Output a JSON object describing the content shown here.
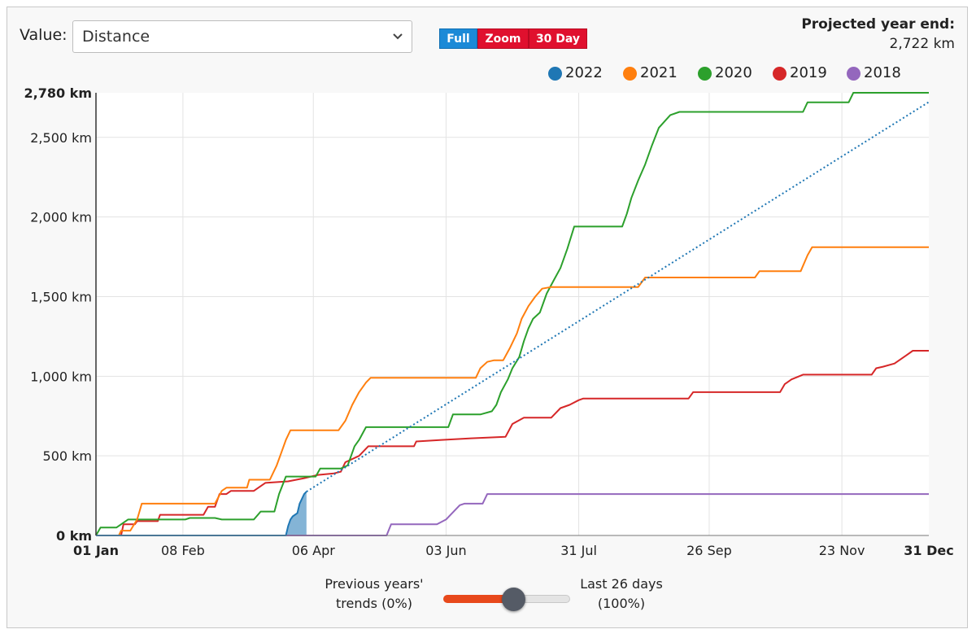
{
  "controls": {
    "value_label": "Value:",
    "selected_metric": "Distance",
    "segments": {
      "full": "Full",
      "zoom": "Zoom",
      "thirty_day": "30 Day"
    },
    "projection_title": "Projected year end:",
    "projection_value": "2,722 km"
  },
  "slider": {
    "left_line1": "Previous years'",
    "left_line2": "trends (0%)",
    "right_line1": "Last 26 days",
    "right_line2": "(100%)",
    "value_percent": 45
  },
  "colors": {
    "2022": "#1f77b4",
    "2021": "#ff7f0e",
    "2020": "#2ca02c",
    "2019": "#d62728",
    "2018": "#9467bd",
    "full_active": "#1c8ad7",
    "segment_red": "#e0102e",
    "slider_fill": "#e8491c"
  },
  "chart_data": {
    "type": "line",
    "title": "",
    "xlabel": "",
    "ylabel": "",
    "unit": "km",
    "ylim": [
      0,
      2780
    ],
    "xlim_day_of_year": [
      1,
      365
    ],
    "grid": true,
    "legend_position": "top-right",
    "y_ticks": [
      {
        "v": 0,
        "label": "0 km",
        "bold": true
      },
      {
        "v": 500,
        "label": "500 km",
        "bold": false
      },
      {
        "v": 1000,
        "label": "1,000 km",
        "bold": false
      },
      {
        "v": 1500,
        "label": "1,500 km",
        "bold": false
      },
      {
        "v": 2000,
        "label": "2,000 km",
        "bold": false
      },
      {
        "v": 2500,
        "label": "2,500 km",
        "bold": false
      },
      {
        "v": 2780,
        "label": "2,780 km",
        "bold": true
      }
    ],
    "x_ticks": [
      {
        "d": 1,
        "label": "01 Jan",
        "bold": true
      },
      {
        "d": 39,
        "label": "08 Feb",
        "bold": false
      },
      {
        "d": 96,
        "label": "06 Apr",
        "bold": false
      },
      {
        "d": 154,
        "label": "03 Jun",
        "bold": false
      },
      {
        "d": 212,
        "label": "31 Jul",
        "bold": false
      },
      {
        "d": 269,
        "label": "26 Sep",
        "bold": false
      },
      {
        "d": 327,
        "label": "23 Nov",
        "bold": false
      },
      {
        "d": 365,
        "label": "31 Dec",
        "bold": true
      }
    ],
    "series": [
      {
        "name": "2018",
        "color_key": "2018",
        "points": [
          [
            1,
            0
          ],
          [
            128,
            0
          ],
          [
            130,
            70
          ],
          [
            150,
            70
          ],
          [
            154,
            100
          ],
          [
            160,
            190
          ],
          [
            162,
            200
          ],
          [
            170,
            200
          ],
          [
            172,
            260
          ],
          [
            365,
            260
          ]
        ]
      },
      {
        "name": "2019",
        "color_key": "2019",
        "points": [
          [
            1,
            0
          ],
          [
            12,
            0
          ],
          [
            13,
            70
          ],
          [
            18,
            70
          ],
          [
            19,
            90
          ],
          [
            28,
            90
          ],
          [
            29,
            130
          ],
          [
            48,
            130
          ],
          [
            50,
            180
          ],
          [
            53,
            180
          ],
          [
            55,
            260
          ],
          [
            58,
            260
          ],
          [
            60,
            280
          ],
          [
            70,
            280
          ],
          [
            75,
            330
          ],
          [
            85,
            340
          ],
          [
            92,
            360
          ],
          [
            98,
            380
          ],
          [
            105,
            390
          ],
          [
            108,
            400
          ],
          [
            110,
            460
          ],
          [
            116,
            500
          ],
          [
            120,
            560
          ],
          [
            140,
            560
          ],
          [
            141,
            590
          ],
          [
            152,
            600
          ],
          [
            165,
            610
          ],
          [
            180,
            620
          ],
          [
            183,
            700
          ],
          [
            188,
            740
          ],
          [
            200,
            740
          ],
          [
            204,
            800
          ],
          [
            208,
            820
          ],
          [
            212,
            850
          ],
          [
            214,
            860
          ],
          [
            260,
            860
          ],
          [
            262,
            900
          ],
          [
            300,
            900
          ],
          [
            302,
            950
          ],
          [
            305,
            980
          ],
          [
            310,
            1010
          ],
          [
            340,
            1010
          ],
          [
            342,
            1050
          ],
          [
            345,
            1060
          ],
          [
            350,
            1080
          ],
          [
            355,
            1130
          ],
          [
            358,
            1160
          ],
          [
            365,
            1160
          ]
        ]
      },
      {
        "name": "2020",
        "color_key": "2020",
        "points": [
          [
            1,
            0
          ],
          [
            3,
            50
          ],
          [
            10,
            50
          ],
          [
            15,
            100
          ],
          [
            40,
            100
          ],
          [
            42,
            110
          ],
          [
            53,
            110
          ],
          [
            56,
            100
          ],
          [
            70,
            100
          ],
          [
            73,
            150
          ],
          [
            79,
            150
          ],
          [
            81,
            260
          ],
          [
            84,
            370
          ],
          [
            97,
            370
          ],
          [
            99,
            420
          ],
          [
            108,
            420
          ],
          [
            111,
            440
          ],
          [
            114,
            560
          ],
          [
            116,
            600
          ],
          [
            119,
            680
          ],
          [
            155,
            680
          ],
          [
            157,
            760
          ],
          [
            169,
            760
          ],
          [
            174,
            780
          ],
          [
            176,
            820
          ],
          [
            178,
            900
          ],
          [
            181,
            980
          ],
          [
            183,
            1050
          ],
          [
            186,
            1120
          ],
          [
            188,
            1220
          ],
          [
            190,
            1300
          ],
          [
            192,
            1360
          ],
          [
            195,
            1400
          ],
          [
            198,
            1520
          ],
          [
            201,
            1600
          ],
          [
            204,
            1680
          ],
          [
            207,
            1800
          ],
          [
            210,
            1940
          ],
          [
            231,
            1940
          ],
          [
            233,
            2020
          ],
          [
            235,
            2120
          ],
          [
            238,
            2230
          ],
          [
            241,
            2330
          ],
          [
            244,
            2450
          ],
          [
            247,
            2560
          ],
          [
            252,
            2640
          ],
          [
            256,
            2660
          ],
          [
            310,
            2660
          ],
          [
            312,
            2720
          ],
          [
            330,
            2720
          ],
          [
            332,
            2780
          ],
          [
            365,
            2780
          ]
        ]
      },
      {
        "name": "2021",
        "color_key": "2021",
        "points": [
          [
            1,
            0
          ],
          [
            11,
            0
          ],
          [
            12,
            30
          ],
          [
            16,
            30
          ],
          [
            19,
            100
          ],
          [
            20,
            150
          ],
          [
            21,
            200
          ],
          [
            53,
            200
          ],
          [
            56,
            280
          ],
          [
            58,
            300
          ],
          [
            67,
            300
          ],
          [
            68,
            350
          ],
          [
            77,
            350
          ],
          [
            80,
            440
          ],
          [
            82,
            520
          ],
          [
            84,
            600
          ],
          [
            86,
            660
          ],
          [
            107,
            660
          ],
          [
            110,
            720
          ],
          [
            113,
            820
          ],
          [
            116,
            900
          ],
          [
            119,
            960
          ],
          [
            121,
            990
          ],
          [
            167,
            990
          ],
          [
            169,
            1050
          ],
          [
            172,
            1090
          ],
          [
            175,
            1100
          ],
          [
            179,
            1100
          ],
          [
            182,
            1180
          ],
          [
            185,
            1270
          ],
          [
            187,
            1360
          ],
          [
            190,
            1440
          ],
          [
            193,
            1500
          ],
          [
            196,
            1550
          ],
          [
            200,
            1560
          ],
          [
            238,
            1560
          ],
          [
            241,
            1620
          ],
          [
            289,
            1620
          ],
          [
            291,
            1660
          ],
          [
            309,
            1660
          ],
          [
            312,
            1760
          ],
          [
            314,
            1810
          ],
          [
            365,
            1810
          ]
        ]
      },
      {
        "name": "2022",
        "color_key": "2022",
        "points": [
          [
            1,
            0
          ],
          [
            84,
            0
          ],
          [
            85,
            60
          ],
          [
            86,
            100
          ],
          [
            87,
            120
          ],
          [
            89,
            140
          ],
          [
            90,
            200
          ],
          [
            92,
            260
          ],
          [
            93,
            275
          ]
        ]
      }
    ],
    "projection": {
      "name": "2022 projection",
      "color_key": "2022",
      "from": [
        93,
        275
      ],
      "to": [
        365,
        2722
      ]
    }
  }
}
